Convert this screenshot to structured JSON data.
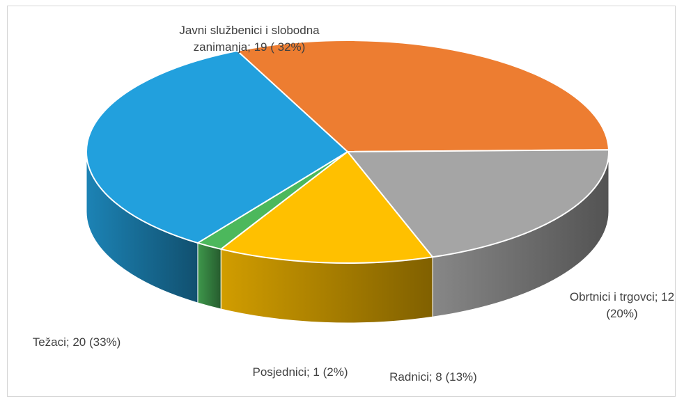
{
  "chart_data": {
    "type": "pie",
    "style": "3d",
    "title": "",
    "slices": [
      {
        "name": "Javni službenici i slobodna zanimanja",
        "value": 19,
        "percent": 32,
        "color": "#ED7D31",
        "label_lines": [
          "Javni službenici i slobodna",
          "zanimanja; 19 ( 32%)"
        ]
      },
      {
        "name": "Obrtnici i trgovci",
        "value": 12,
        "percent": 20,
        "color": "#A5A5A5",
        "label_lines": [
          "Obrtnici i trgovci; 12",
          "(20%)"
        ]
      },
      {
        "name": "Radnici",
        "value": 8,
        "percent": 13,
        "color": "#FFC000",
        "label_lines": [
          "Radnici; 8 (13%)"
        ]
      },
      {
        "name": "Posjednici",
        "value": 1,
        "percent": 2,
        "color": "#4CB85C",
        "label_lines": [
          "Posjednici; 1 (2%)"
        ]
      },
      {
        "name": "Težaci",
        "value": 20,
        "percent": 33,
        "color": "#22A0DD",
        "label_lines": [
          "Težaci; 20 (33%)"
        ]
      }
    ]
  }
}
